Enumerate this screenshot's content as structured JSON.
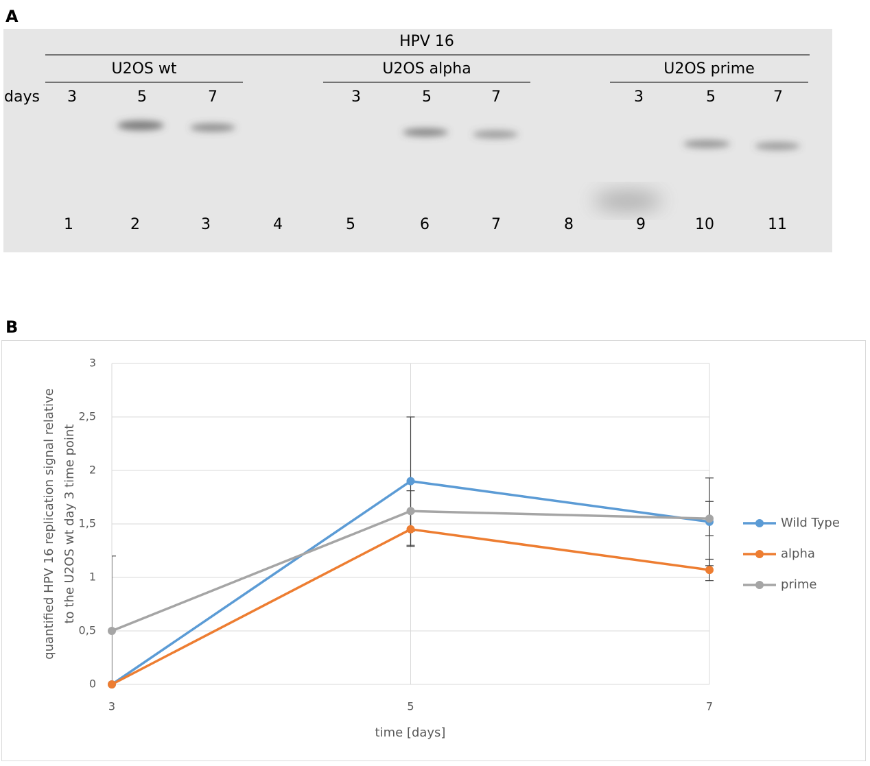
{
  "panel_a": {
    "label": "A",
    "construct": "HPV 16",
    "groups": [
      {
        "name": "U2OS wt",
        "days": [
          "3",
          "5",
          "7"
        ]
      },
      {
        "name": "U2OS alpha",
        "days": [
          "3",
          "5",
          "7"
        ]
      },
      {
        "name": "U2OS prime",
        "days": [
          "3",
          "5",
          "7"
        ]
      }
    ],
    "days_label": "days",
    "lanes": [
      "1",
      "2",
      "3",
      "4",
      "5",
      "6",
      "7",
      "8",
      "9",
      "10",
      "11"
    ]
  },
  "chart_data": {
    "type": "line",
    "panel_label": "B",
    "xlabel": "time [days]",
    "ylabel": [
      "quantified HPV 16 replication signal relative",
      "to the U2OS wt day 3 time point"
    ],
    "x": [
      3,
      5,
      7
    ],
    "xlim": [
      3,
      7
    ],
    "xticks": [
      3,
      5,
      7
    ],
    "ylim": [
      0,
      3
    ],
    "yticks": [
      0,
      {
        "value": 0.5,
        "label": "0,5"
      },
      1,
      {
        "value": 1.5,
        "label": "1,5"
      },
      2,
      {
        "value": 2.5,
        "label": "2,5"
      },
      3
    ],
    "grid": true,
    "legend": "right",
    "series": [
      {
        "name": "Wild Type",
        "color": "#5b9bd5",
        "values": [
          0,
          1.9,
          1.52
        ],
        "errors": [
          null,
          0.6,
          0.41
        ]
      },
      {
        "name": "alpha",
        "color": "#ed7d31",
        "values": [
          0,
          1.45,
          1.07
        ],
        "errors": [
          null,
          0.16,
          0.1
        ]
      },
      {
        "name": "prime",
        "color": "#a5a5a5",
        "values": [
          0.5,
          1.62,
          1.55
        ],
        "errors": [
          0.7,
          0.19,
          0.16
        ]
      }
    ]
  }
}
